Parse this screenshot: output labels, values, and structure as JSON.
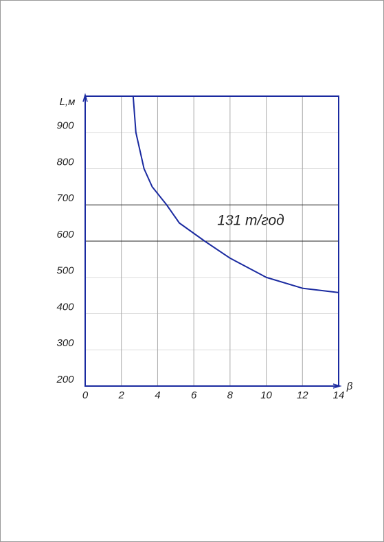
{
  "chart_data": {
    "type": "line",
    "y_label": "L,м",
    "x_label": "β",
    "annotation": "131 т/год",
    "x": [
      2.65,
      2.8,
      3.25,
      3.7,
      4.5,
      5.2,
      6.6,
      8,
      10,
      12,
      14
    ],
    "series": [
      {
        "name": "131 т/год",
        "color": "#1a2aa0",
        "values": [
          1000,
          900,
          800,
          750,
          700,
          650,
          600,
          553,
          500,
          470,
          458
        ]
      }
    ],
    "xlim": [
      0,
      14
    ],
    "ylim": [
      200,
      1000
    ],
    "xticks": [
      0,
      2,
      4,
      6,
      8,
      10,
      12,
      14
    ],
    "yticks": [
      200,
      300,
      400,
      500,
      600,
      700,
      800,
      900
    ],
    "hlines": [
      600,
      700
    ],
    "grid": true
  }
}
